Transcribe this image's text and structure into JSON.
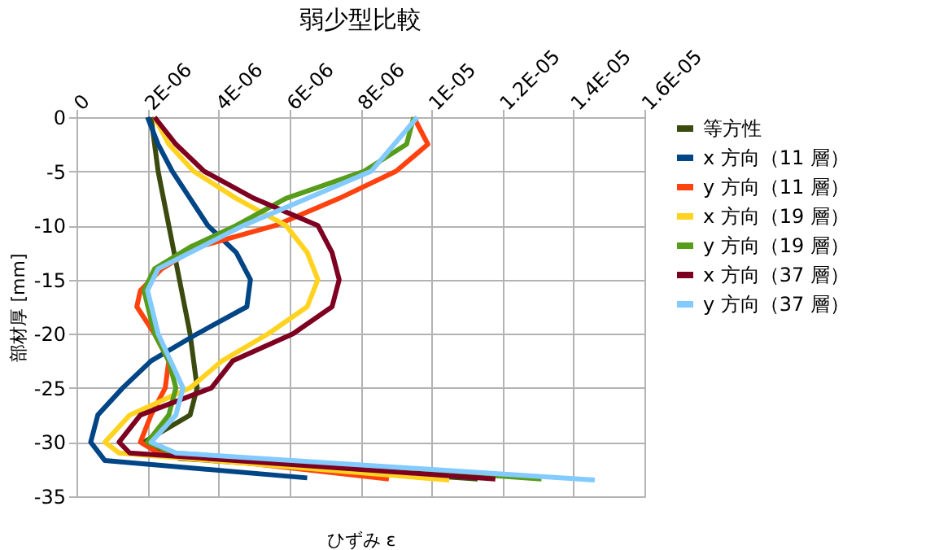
{
  "chart_data": {
    "type": "line",
    "title": "弱少型比較",
    "xlabel": "ひずみ ε",
    "ylabel": "部材厚 [mm]",
    "xlim": [
      0,
      1.6e-05
    ],
    "xticks": [
      0,
      {
        "value": 2e-06,
        "label": "2E-06"
      },
      {
        "value": 4e-06,
        "label": "4E-06"
      },
      {
        "value": 6e-06,
        "label": "6E-06"
      },
      {
        "value": 8e-06,
        "label": "8E-06"
      },
      {
        "value": 1e-05,
        "label": "1E-05"
      },
      {
        "value": 1.2e-05,
        "label": "1.2E-05"
      },
      {
        "value": 1.4e-05,
        "label": "1.4E-05"
      },
      {
        "value": 1.6e-05,
        "label": "1.6E-05"
      }
    ],
    "ylim": [
      -35,
      0
    ],
    "yticks": [
      -35,
      -30,
      -25,
      -20,
      -15,
      -10,
      -5,
      0
    ],
    "grid": true,
    "legend": "right",
    "marker": "none",
    "line_style": "solid",
    "series": [
      {
        "name": "等方性",
        "color": "#3b4a0f",
        "x": [
          2.1e-06,
          2.3e-06,
          2.6e-06,
          2.9e-06,
          3.2e-06,
          3.4e-06,
          3.2e-06,
          1.9e-06,
          2.9e-06,
          1.13e-05
        ],
        "values": [
          0,
          -5,
          -10,
          -15,
          -20,
          -25,
          -27.5,
          -30,
          -31.5,
          -33.4
        ]
      },
      {
        "name": "x 方向（11 層）",
        "color": "#004586",
        "x": [
          2e-06,
          2.3e-06,
          2.7e-06,
          3.2e-06,
          3.7e-06,
          4.5e-06,
          4.9e-06,
          4.8e-06,
          3.4e-06,
          2.1e-06,
          1.3e-06,
          6e-07,
          4e-07,
          8e-07,
          6.5e-06
        ],
        "values": [
          0,
          -2.5,
          -5,
          -7.5,
          -10,
          -12.5,
          -15,
          -17.5,
          -20,
          -22.5,
          -25,
          -27.5,
          -30,
          -31.7,
          -33.3
        ]
      },
      {
        "name": "y 方向（11 層）",
        "color": "#ff420e",
        "x": [
          9.5e-06,
          9.9e-06,
          9e-06,
          7.4e-06,
          5.6e-06,
          3.4e-06,
          2.4e-06,
          1.8e-06,
          1.7e-06,
          2.2e-06,
          2.6e-06,
          2.5e-06,
          2.1e-06,
          1.8e-06,
          2.3e-06,
          8.8e-06
        ],
        "values": [
          0,
          -2.5,
          -5,
          -7.5,
          -10,
          -12,
          -14,
          -16,
          -17.5,
          -20,
          -22.5,
          -25,
          -27.5,
          -30,
          -31,
          -33.4
        ]
      },
      {
        "name": "x 方向（19 層）",
        "color": "#ffd320",
        "x": [
          2.2e-06,
          2.6e-06,
          3.3e-06,
          4.5e-06,
          5.9e-06,
          6.5e-06,
          6.8e-06,
          6.5e-06,
          5.4e-06,
          4.1e-06,
          3.2e-06,
          1.5e-06,
          8e-07,
          1.2e-06,
          1.05e-05
        ],
        "values": [
          0,
          -2.5,
          -5,
          -7.5,
          -10,
          -12.5,
          -15,
          -17.5,
          -20,
          -22.5,
          -25,
          -27.5,
          -30,
          -31,
          -33.5
        ]
      },
      {
        "name": "y 方向（19 層）",
        "color": "#579d1c",
        "x": [
          9.5e-06,
          9.3e-06,
          8.1e-06,
          5.9e-06,
          4.5e-06,
          3.2e-06,
          2.2e-06,
          1.9e-06,
          2.2e-06,
          2.6e-06,
          2.8e-06,
          2.6e-06,
          2e-06,
          2.7e-06,
          1.31e-05
        ],
        "values": [
          0,
          -2.5,
          -5,
          -7.5,
          -10,
          -12,
          -14,
          -16,
          -20,
          -22.5,
          -25,
          -27.5,
          -30,
          -31,
          -33.4
        ]
      },
      {
        "name": "x 方向（37 層）",
        "color": "#7e0021",
        "x": [
          2.2e-06,
          2.8e-06,
          3.6e-06,
          5e-06,
          6.8e-06,
          7.2e-06,
          7.4e-06,
          7.2e-06,
          6.1e-06,
          4.4e-06,
          3.8e-06,
          1.8e-06,
          1.2e-06,
          1.5e-06,
          1.18e-05
        ],
        "values": [
          0,
          -2.5,
          -5,
          -7.5,
          -10,
          -12.5,
          -15,
          -17.5,
          -20,
          -22.5,
          -25,
          -27.5,
          -30,
          -31,
          -33.4
        ]
      },
      {
        "name": "y 方向（37 層）",
        "color": "#83caff",
        "x": [
          9.6e-06,
          8.3e-06,
          4.7e-06,
          2.3e-06,
          2e-06,
          2.3e-06,
          3e-06,
          2.8e-06,
          2.1e-06,
          2.8e-06,
          1.46e-05
        ],
        "values": [
          0,
          -5,
          -10,
          -14,
          -16,
          -20,
          -25,
          -27.5,
          -30,
          -31,
          -33.5
        ]
      }
    ]
  }
}
